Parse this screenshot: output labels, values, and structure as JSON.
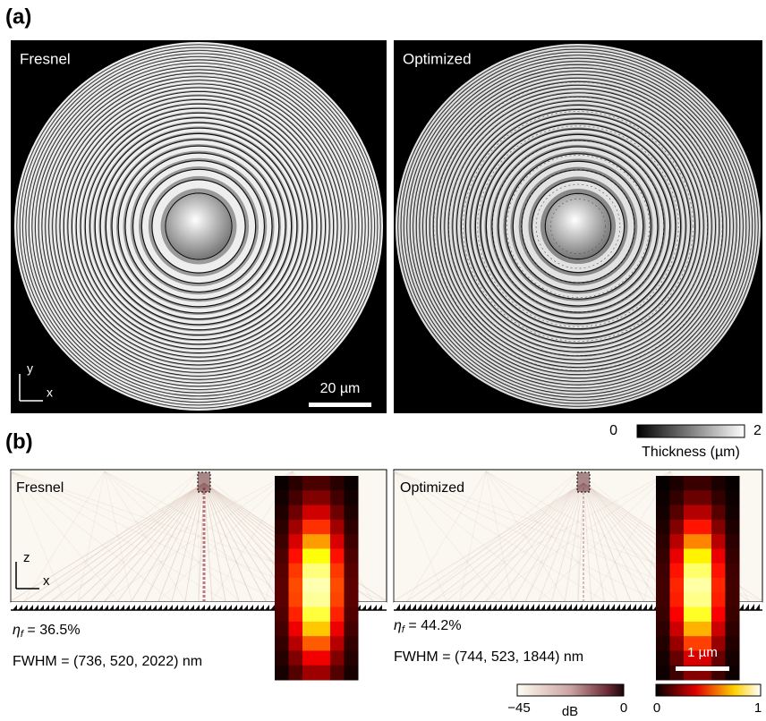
{
  "panel_a": {
    "label": "(a)",
    "left_title": "Fresnel",
    "right_title": "Optimized",
    "scale_bar": "20 µm",
    "axis_y": "y",
    "axis_x": "x",
    "colorbar": {
      "min": "0",
      "max": "2",
      "label": "Thickness (µm)"
    }
  },
  "panel_b": {
    "label": "(b)",
    "axis_z": "z",
    "axis_x": "x",
    "left": {
      "title": "Fresnel",
      "eta_symbol": "η",
      "eta_sub": "f",
      "eta_text": " = 36.5%",
      "fwhm": "FWHM = (736, 520, 2022) nm"
    },
    "right": {
      "title": "Optimized",
      "eta_symbol": "η",
      "eta_sub": "f",
      "eta_text": " = 44.2%",
      "fwhm": "FWHM = (744, 523, 1844) nm",
      "scale_bar": "1 µm"
    },
    "db_colorbar": {
      "min": "−45",
      "unit": "dB",
      "max": "0"
    },
    "intensity_colorbar": {
      "min": "0",
      "max": "1"
    }
  }
}
